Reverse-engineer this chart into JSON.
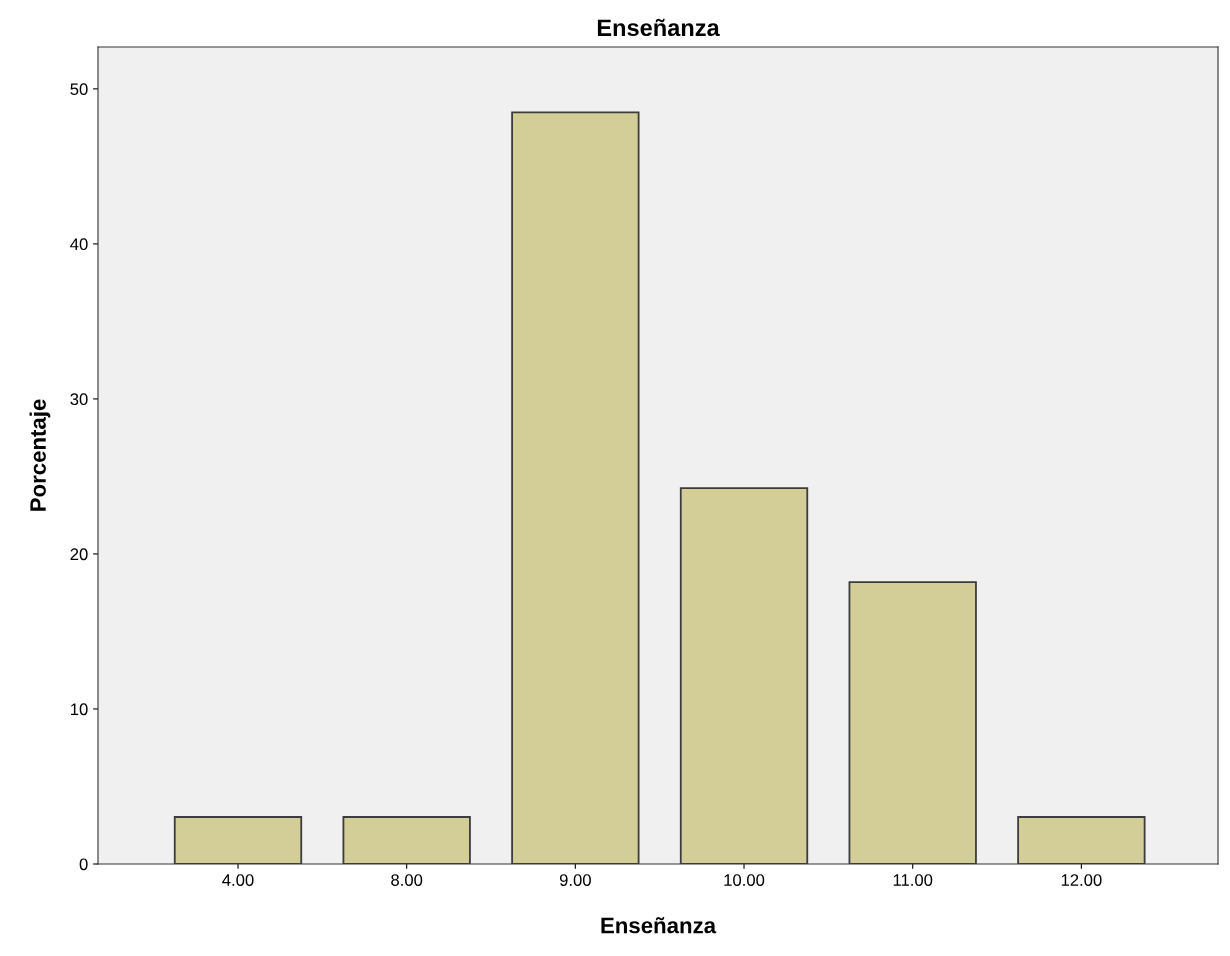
{
  "chart_data": {
    "type": "bar",
    "title": "Enseñanza",
    "xlabel": "Enseñanza",
    "ylabel": "Porcentaje",
    "categories": [
      "4.00",
      "8.00",
      "9.00",
      "10.00",
      "11.00",
      "12.00"
    ],
    "values": [
      3.03,
      3.03,
      48.48,
      24.24,
      18.18,
      3.03
    ],
    "color": "#d3ce97",
    "ylim": [
      0,
      52.7
    ],
    "yticks": [
      0,
      10,
      20,
      30,
      40,
      50
    ],
    "grid": false,
    "legend": false
  }
}
